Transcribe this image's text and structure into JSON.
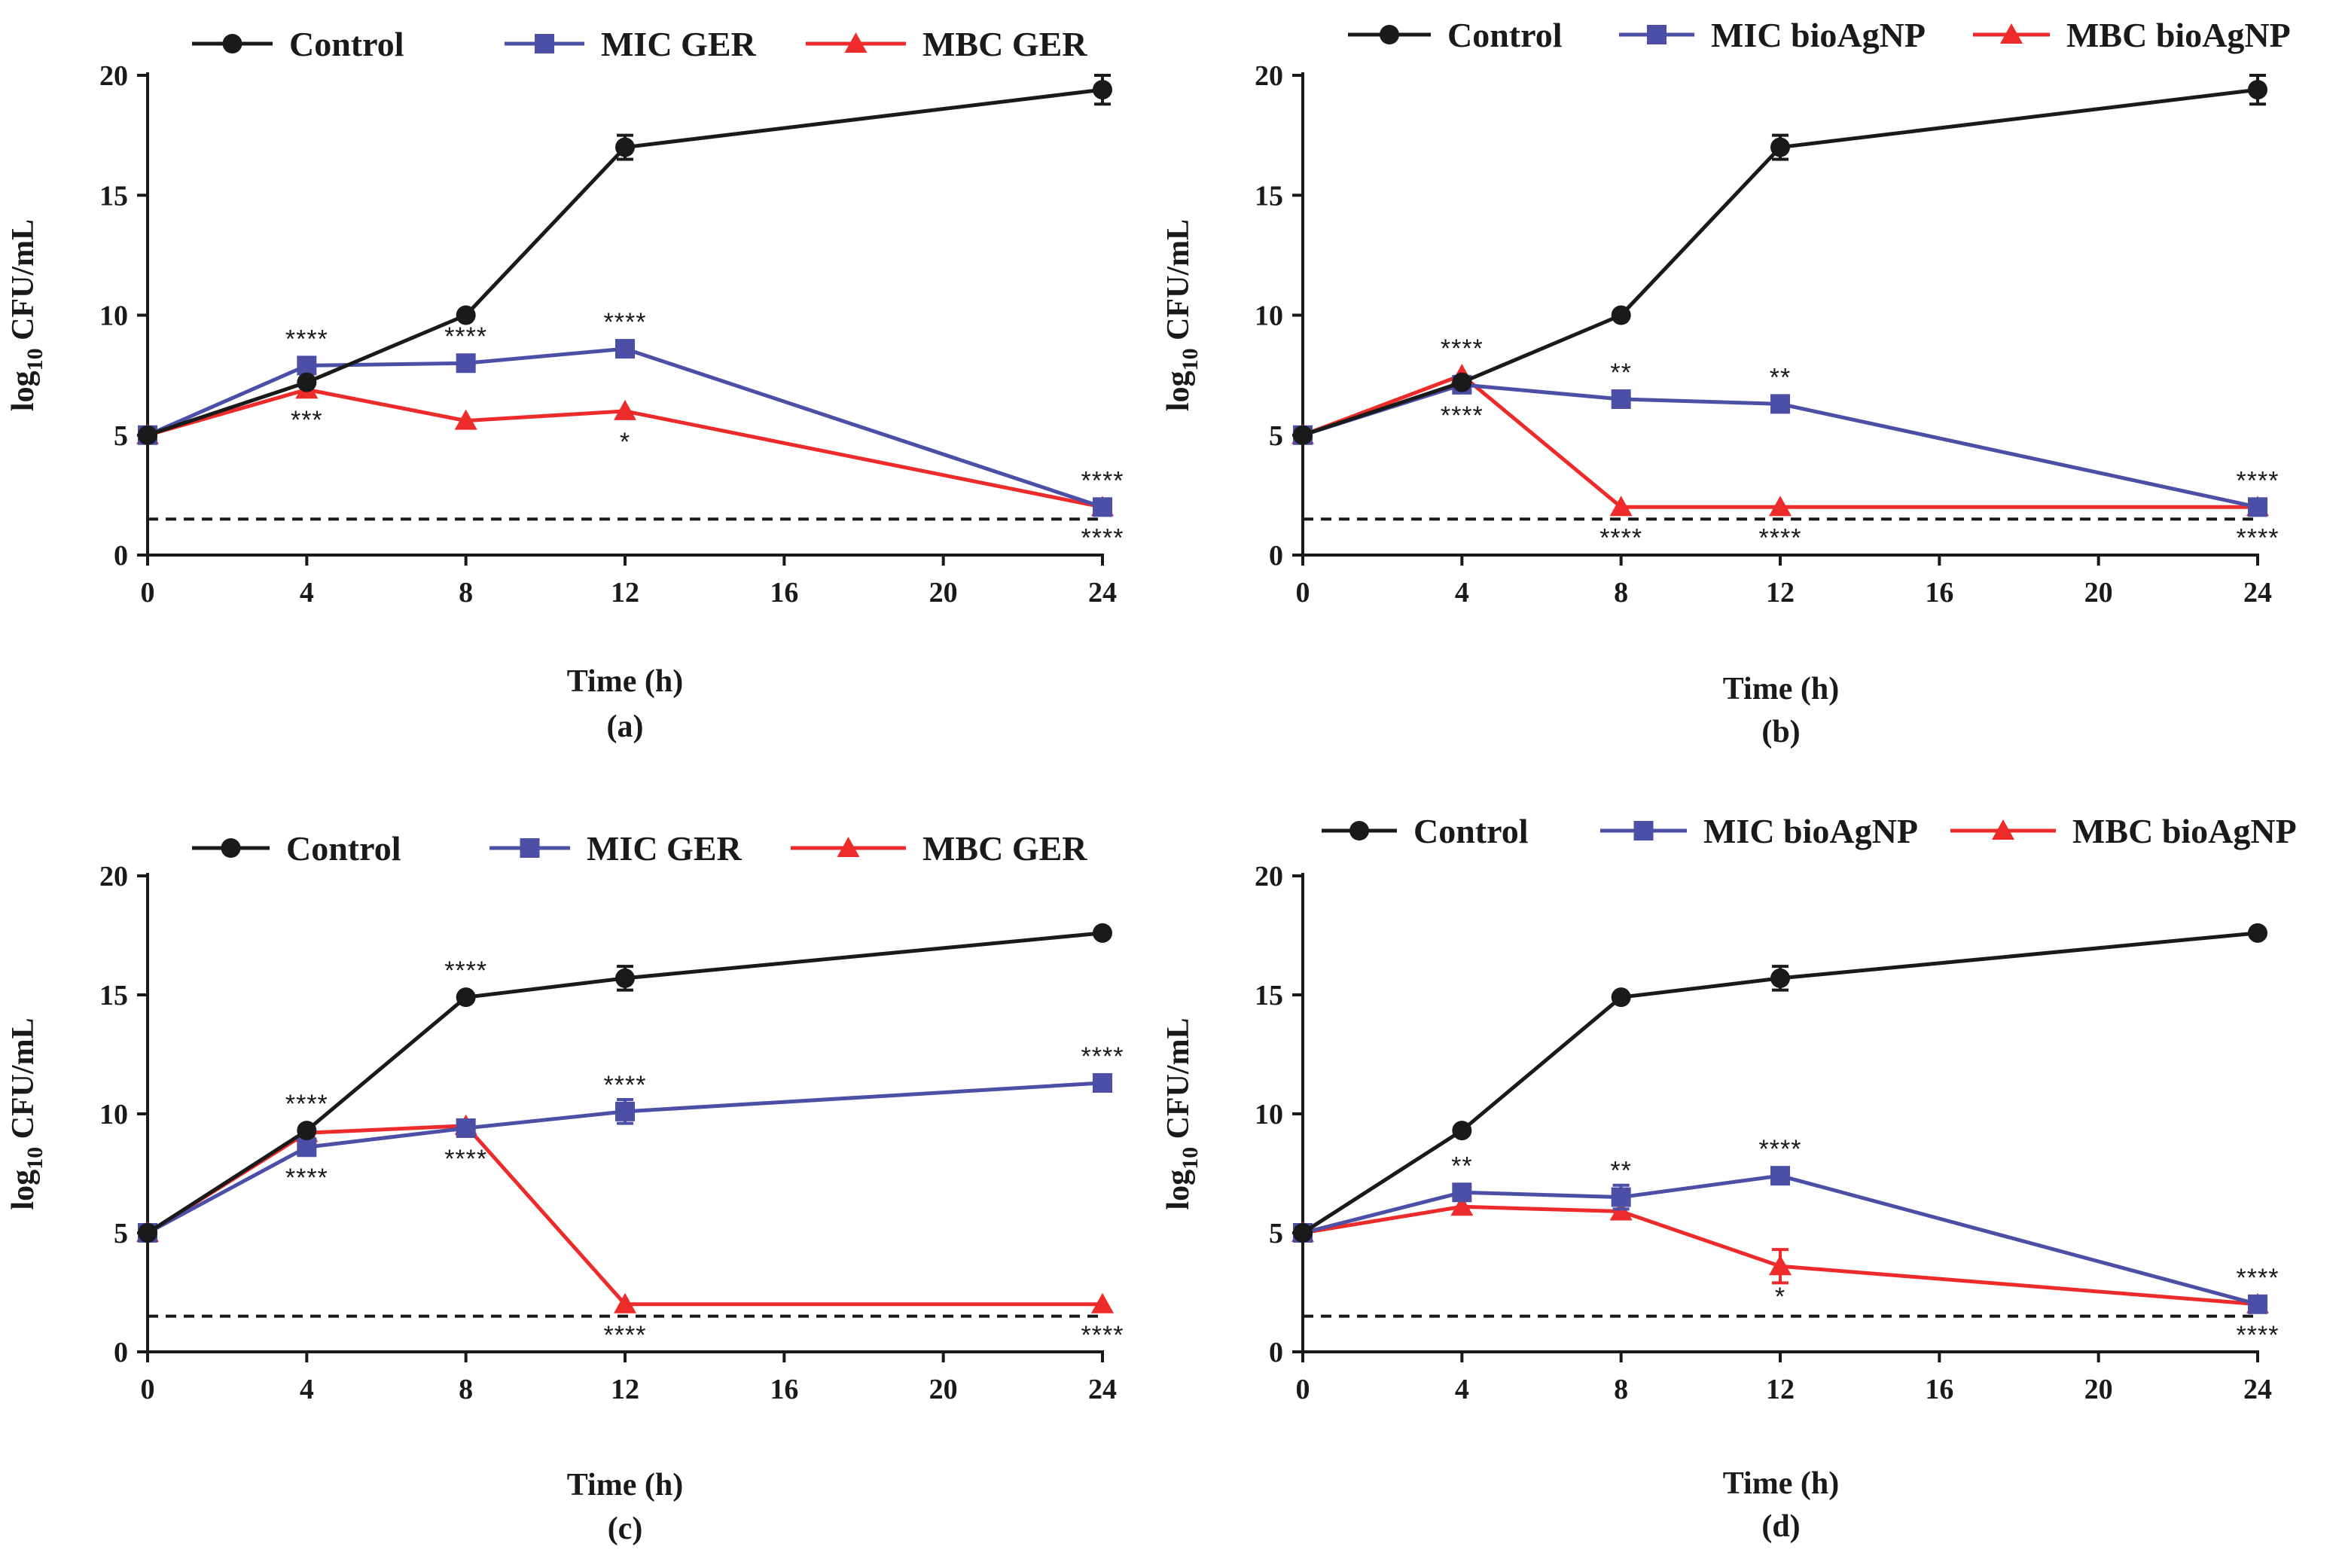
{
  "colors": {
    "control": "#1a1a1a",
    "mic": "#4b4fa6",
    "mbc": "#ee2b2b",
    "axis": "#1a1a1a"
  },
  "chart_data": [
    {
      "panel_label": "(a)",
      "type": "line",
      "xlabel": "Time (h)",
      "ylabel_prefix": "log",
      "ylabel_sub": "10",
      "ylabel_suffix": " CFU/mL",
      "xlim": [
        0,
        24
      ],
      "ylim": [
        0,
        20
      ],
      "xticks": [
        0,
        4,
        8,
        12,
        16,
        20,
        24
      ],
      "yticks": [
        0,
        5,
        10,
        15,
        20
      ],
      "detection_limit": 1.5,
      "legend": {
        "placement": "top",
        "spacing": "wide"
      },
      "series": [
        {
          "name": "Control",
          "marker": "circle",
          "color_key": "control",
          "x": [
            0,
            4,
            8,
            12,
            24
          ],
          "y": [
            5.0,
            7.2,
            10.0,
            17.0,
            19.4
          ],
          "err": [
            0,
            0,
            0,
            0.5,
            0.6
          ],
          "sig_above": [
            "",
            "",
            "",
            "",
            ""
          ],
          "sig_below": [
            "",
            "",
            "",
            "",
            ""
          ]
        },
        {
          "name": "MIC GER",
          "marker": "square",
          "color_key": "mic",
          "x": [
            0,
            4,
            8,
            12,
            24
          ],
          "y": [
            5.0,
            7.9,
            8.0,
            8.6,
            2.0
          ],
          "err": [
            0,
            0,
            0,
            0,
            0
          ],
          "sig_above": [
            "",
            "****",
            "****",
            "****",
            "****"
          ],
          "sig_below": [
            "",
            "",
            "",
            "",
            ""
          ]
        },
        {
          "name": "MBC GER",
          "marker": "triangle",
          "color_key": "mbc",
          "x": [
            0,
            4,
            8,
            12,
            24
          ],
          "y": [
            5.0,
            6.9,
            5.6,
            6.0,
            2.0
          ],
          "err": [
            0,
            0,
            0,
            0,
            0
          ],
          "sig_above": [
            "",
            "",
            "",
            "",
            ""
          ],
          "sig_below": [
            "",
            "***",
            "",
            "*",
            "****"
          ]
        }
      ]
    },
    {
      "panel_label": "(b)",
      "type": "line",
      "xlabel": "Time (h)",
      "ylabel_prefix": "log",
      "ylabel_sub": "10",
      "ylabel_suffix": " CFU/mL",
      "xlim": [
        0,
        24
      ],
      "ylim": [
        0,
        20
      ],
      "xticks": [
        0,
        4,
        8,
        12,
        16,
        20,
        24
      ],
      "yticks": [
        0,
        5,
        10,
        15,
        20
      ],
      "detection_limit": 1.5,
      "legend": {
        "placement": "top",
        "spacing": "tight"
      },
      "series": [
        {
          "name": "Control",
          "marker": "circle",
          "color_key": "control",
          "x": [
            0,
            4,
            8,
            12,
            24
          ],
          "y": [
            5.0,
            7.2,
            10.0,
            17.0,
            19.4
          ],
          "err": [
            0,
            0,
            0,
            0.5,
            0.6
          ],
          "sig_above": [
            "",
            "",
            "",
            "",
            ""
          ],
          "sig_below": [
            "",
            "",
            "",
            "",
            ""
          ]
        },
        {
          "name": "MIC bioAgNP",
          "marker": "square",
          "color_key": "mic",
          "x": [
            0,
            4,
            8,
            12,
            24
          ],
          "y": [
            5.0,
            7.1,
            6.5,
            6.3,
            2.0
          ],
          "err": [
            0,
            0,
            0,
            0.3,
            0
          ],
          "sig_above": [
            "",
            "",
            "**",
            "**",
            "****"
          ],
          "sig_below": [
            "",
            "****",
            "",
            "",
            ""
          ]
        },
        {
          "name": "MBC bioAgNP",
          "marker": "triangle",
          "color_key": "mbc",
          "x": [
            0,
            4,
            8,
            12,
            24
          ],
          "y": [
            5.0,
            7.5,
            2.0,
            2.0,
            2.0
          ],
          "err": [
            0,
            0,
            0,
            0,
            0
          ],
          "sig_above": [
            "",
            "****",
            "",
            "",
            ""
          ],
          "sig_below": [
            "",
            "",
            "****",
            "****",
            "****"
          ]
        }
      ]
    },
    {
      "panel_label": "(c)",
      "type": "line",
      "xlabel": "Time (h)",
      "ylabel_prefix": "log",
      "ylabel_sub": "10",
      "ylabel_suffix": " CFU/mL",
      "xlim": [
        0,
        24
      ],
      "ylim": [
        0,
        20
      ],
      "xticks": [
        0,
        4,
        8,
        12,
        16,
        20,
        24
      ],
      "yticks": [
        0,
        5,
        10,
        15,
        20
      ],
      "detection_limit": 1.5,
      "legend": {
        "placement": "top",
        "spacing": "wide"
      },
      "series": [
        {
          "name": "Control",
          "marker": "circle",
          "color_key": "control",
          "x": [
            0,
            4,
            8,
            12,
            24
          ],
          "y": [
            5.0,
            9.3,
            14.9,
            15.7,
            17.6
          ],
          "err": [
            0,
            0,
            0,
            0.5,
            0
          ],
          "sig_above": [
            "",
            "****",
            "****",
            "",
            ""
          ],
          "sig_below": [
            "",
            "",
            "",
            "",
            ""
          ]
        },
        {
          "name": "MIC GER",
          "marker": "square",
          "color_key": "mic",
          "x": [
            0,
            4,
            8,
            12,
            24
          ],
          "y": [
            5.0,
            8.6,
            9.4,
            10.1,
            11.3
          ],
          "err": [
            0,
            0,
            0,
            0.5,
            0
          ],
          "sig_above": [
            "",
            "",
            "",
            "****",
            "****"
          ],
          "sig_below": [
            "",
            "****",
            "****",
            "",
            ""
          ]
        },
        {
          "name": "MBC GER",
          "marker": "triangle",
          "color_key": "mbc",
          "x": [
            0,
            4,
            8,
            12,
            24
          ],
          "y": [
            5.0,
            9.2,
            9.5,
            2.0,
            2.0
          ],
          "err": [
            0,
            0,
            0,
            0,
            0
          ],
          "sig_above": [
            "",
            "",
            "",
            "",
            ""
          ],
          "sig_below": [
            "",
            "",
            "",
            "****",
            "****"
          ]
        }
      ]
    },
    {
      "panel_label": "(d)",
      "type": "line",
      "xlabel": "Time (h)",
      "ylabel_prefix": "log",
      "ylabel_sub": "10",
      "ylabel_suffix": " CFU/mL",
      "xlim": [
        0,
        24
      ],
      "ylim": [
        0,
        20
      ],
      "xticks": [
        0,
        4,
        8,
        12,
        16,
        20,
        24
      ],
      "yticks": [
        0,
        5,
        10,
        15,
        20
      ],
      "detection_limit": 1.5,
      "legend": {
        "placement": "top",
        "spacing": "tight"
      },
      "series": [
        {
          "name": "Control",
          "marker": "circle",
          "color_key": "control",
          "x": [
            0,
            4,
            8,
            12,
            24
          ],
          "y": [
            5.0,
            9.3,
            14.9,
            15.7,
            17.6
          ],
          "err": [
            0,
            0,
            0,
            0.5,
            0
          ],
          "sig_above": [
            "",
            "",
            "",
            "",
            ""
          ],
          "sig_below": [
            "",
            "",
            "",
            "",
            ""
          ]
        },
        {
          "name": "MIC bioAgNP",
          "marker": "square",
          "color_key": "mic",
          "x": [
            0,
            4,
            8,
            12,
            24
          ],
          "y": [
            5.0,
            6.7,
            6.5,
            7.4,
            2.0
          ],
          "err": [
            0,
            0,
            0.5,
            0,
            0
          ],
          "sig_above": [
            "",
            "**",
            "**",
            "****",
            "****"
          ],
          "sig_below": [
            "",
            "",
            "",
            "",
            ""
          ]
        },
        {
          "name": "MBC bioAgNP",
          "marker": "triangle",
          "color_key": "mbc",
          "x": [
            0,
            4,
            8,
            12,
            24
          ],
          "y": [
            5.0,
            6.1,
            5.9,
            3.6,
            2.0
          ],
          "err": [
            0,
            0,
            0,
            0.7,
            0
          ],
          "sig_above": [
            "",
            "",
            "",
            "",
            ""
          ],
          "sig_below": [
            "",
            "",
            "",
            "*",
            "****"
          ]
        }
      ]
    }
  ]
}
